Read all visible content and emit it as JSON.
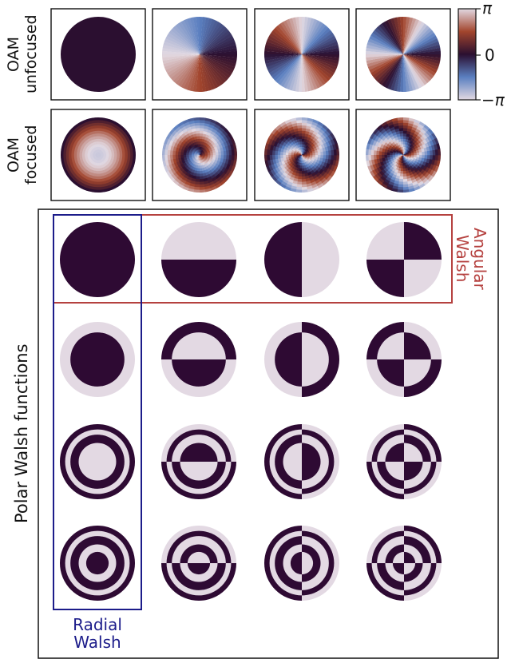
{
  "top_panel": {
    "row_labels": [
      {
        "line1": "OAM",
        "line2": "unfocused"
      },
      {
        "line1": "OAM",
        "line2": "focused"
      }
    ],
    "oam_charges": [
      0,
      1,
      2,
      3
    ],
    "colorbar": {
      "colormap": "twilight_shifted",
      "ticks": [
        "π",
        "0",
        "−π"
      ],
      "colors": [
        "#e2d9e2",
        "#5a7fc0",
        "#2b0f30",
        "#a2452d",
        "#e2d9e2"
      ]
    }
  },
  "bottom_panel": {
    "ylabel": "Polar Walsh functions",
    "rows": 4,
    "cols": 4,
    "colors": {
      "dark": "#2e0a33",
      "light": "#e3d9e3"
    },
    "angular_box": {
      "label_line1": "Angular",
      "label_line2": "Walsh",
      "color": "#b5413f"
    },
    "radial_box": {
      "label_line1": "Radial",
      "label_line2": "Walsh",
      "color": "#1c1c8a"
    }
  }
}
